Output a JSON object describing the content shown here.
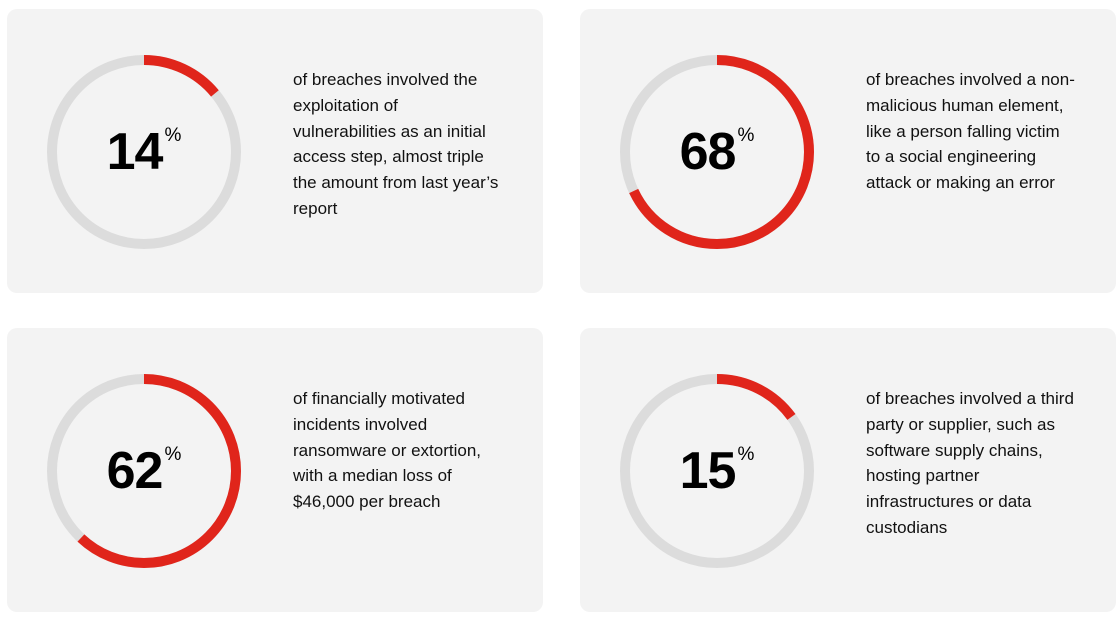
{
  "colors": {
    "accent": "#e0251b",
    "track": "#dcdcdc",
    "card": "#f3f3f3"
  },
  "chart_data": [
    {
      "type": "pie",
      "value": 14,
      "unit": "%",
      "text": "of breaches involved the exploitation of vulnerabilities as an initial access step, almost triple the amount from last year’s report"
    },
    {
      "type": "pie",
      "value": 68,
      "unit": "%",
      "text": "of breaches involved a non-malicious human element, like a person falling victim to a social engineering attack or making an error"
    },
    {
      "type": "pie",
      "value": 62,
      "unit": "%",
      "text": "of financially motivated incidents involved ransomware or extortion, with a median loss of $46,000 per breach"
    },
    {
      "type": "pie",
      "value": 15,
      "unit": "%",
      "text": "of breaches involved a third party or supplier, such as software supply chains, hosting partner infrastructures or data custodians"
    }
  ]
}
